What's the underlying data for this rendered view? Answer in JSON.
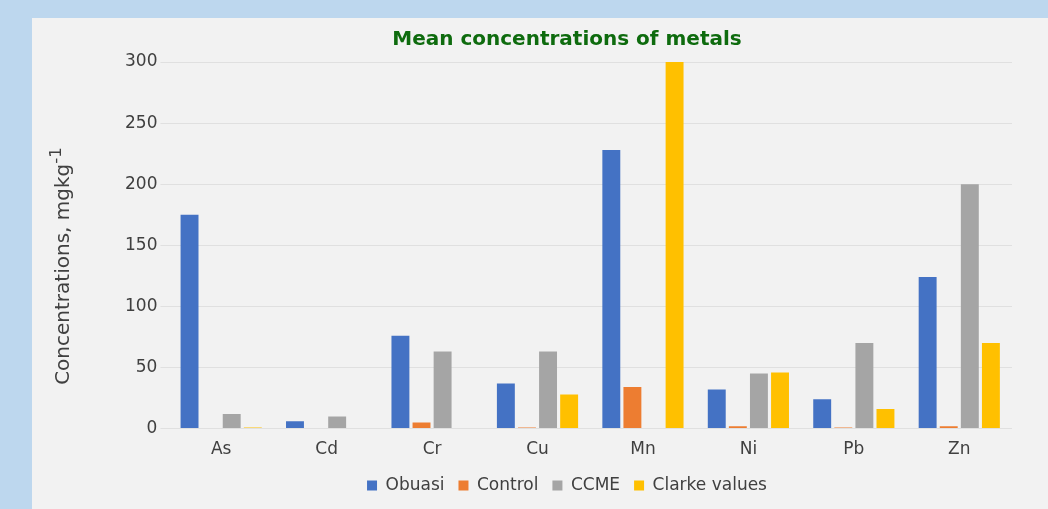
{
  "chart_data": {
    "type": "bar",
    "title": "Mean concentrations of metals",
    "ylabel": "Concentrations, mgkg$^{-1}$",
    "categories": [
      "As",
      "Cd",
      "Cr",
      "Cu",
      "Mn",
      "Ni",
      "Pb",
      "Zn"
    ],
    "series": [
      {
        "name": "Obuasi",
        "color": "#4472c4",
        "values": [
          175,
          6,
          76,
          37,
          228,
          32,
          24,
          124
        ]
      },
      {
        "name": "Control",
        "color": "#ed7d31",
        "values": [
          null,
          null,
          5,
          1,
          34,
          2,
          1,
          2
        ]
      },
      {
        "name": "CCME",
        "color": "#a5a5a5",
        "values": [
          12,
          10,
          63,
          63,
          null,
          45,
          70,
          200
        ]
      },
      {
        "name": "Clarke values",
        "color": "#ffc000",
        "values": [
          1,
          null,
          null,
          28,
          300,
          46,
          16,
          70
        ]
      }
    ],
    "ylim": [
      0,
      300
    ],
    "yticks": [
      0,
      50,
      100,
      150,
      200,
      250,
      300
    ],
    "grid": "y",
    "legend": "bottom"
  }
}
